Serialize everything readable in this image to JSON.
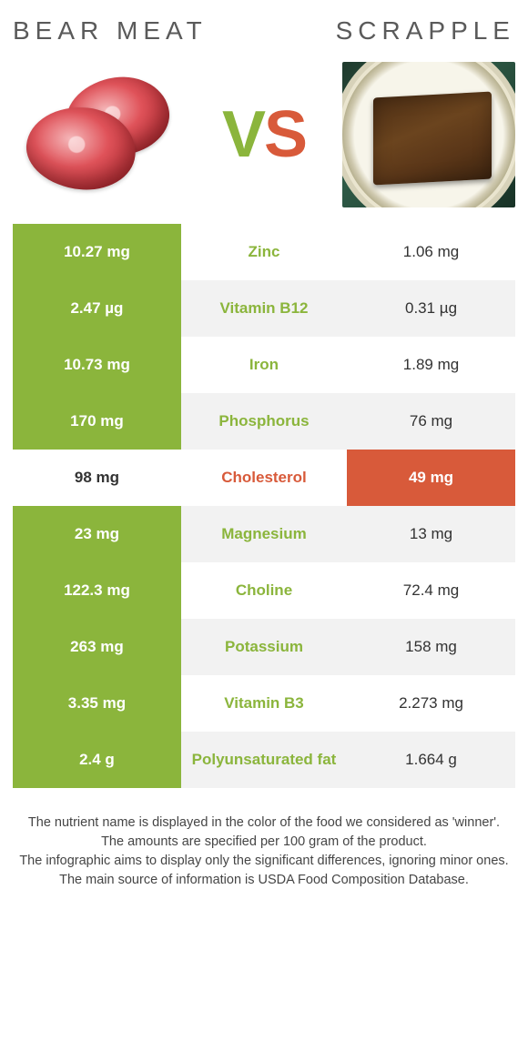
{
  "colors": {
    "left": "#8bb53c",
    "right": "#d85a3a",
    "row_alt_bg": "#f2f2f2",
    "text_dark": "#333333"
  },
  "foods": {
    "left": {
      "name": "Bear meat"
    },
    "right": {
      "name": "Scrapple"
    }
  },
  "vs_label": {
    "v": "V",
    "s": "S"
  },
  "rows": [
    {
      "nutrient": "Zinc",
      "left": "10.27 mg",
      "right": "1.06 mg",
      "winner": "left"
    },
    {
      "nutrient": "Vitamin B12",
      "left": "2.47 µg",
      "right": "0.31 µg",
      "winner": "left"
    },
    {
      "nutrient": "Iron",
      "left": "10.73 mg",
      "right": "1.89 mg",
      "winner": "left"
    },
    {
      "nutrient": "Phosphorus",
      "left": "170 mg",
      "right": "76 mg",
      "winner": "left"
    },
    {
      "nutrient": "Cholesterol",
      "left": "98 mg",
      "right": "49 mg",
      "winner": "right"
    },
    {
      "nutrient": "Magnesium",
      "left": "23 mg",
      "right": "13 mg",
      "winner": "left"
    },
    {
      "nutrient": "Choline",
      "left": "122.3 mg",
      "right": "72.4 mg",
      "winner": "left"
    },
    {
      "nutrient": "Potassium",
      "left": "263 mg",
      "right": "158 mg",
      "winner": "left"
    },
    {
      "nutrient": "Vitamin B3",
      "left": "3.35 mg",
      "right": "2.273 mg",
      "winner": "left"
    },
    {
      "nutrient": "Polyunsaturated fat",
      "left": "2.4 g",
      "right": "1.664 g",
      "winner": "left"
    }
  ],
  "footer": {
    "line1": "The nutrient name is displayed in the color of the food we considered as 'winner'.",
    "line2": "The amounts are specified per 100 gram of the product.",
    "line3": "The infographic aims to display only the significant differences, ignoring minor ones.",
    "line4": "The main source of information is USDA Food Composition Database."
  }
}
